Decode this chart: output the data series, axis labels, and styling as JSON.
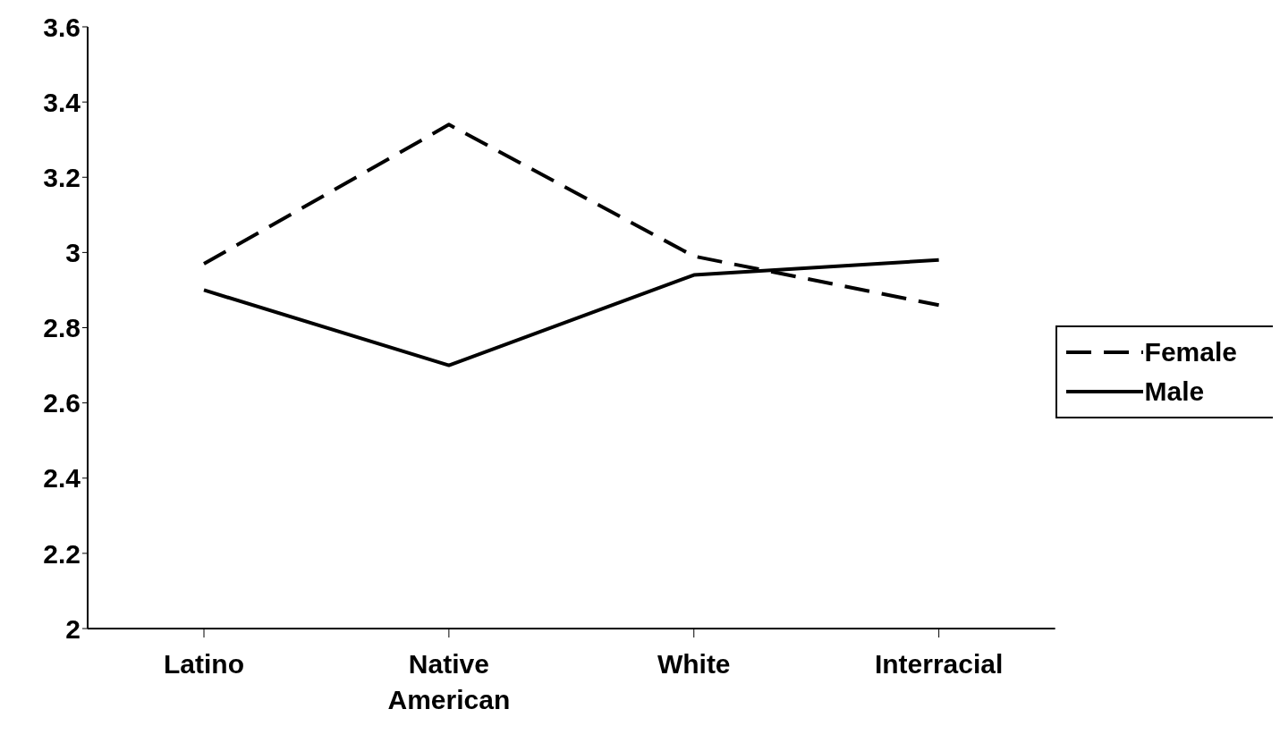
{
  "chart_data": {
    "type": "line",
    "categories": [
      "Latino",
      "Native American",
      "White",
      "Interracial"
    ],
    "series": [
      {
        "name": "Female",
        "color": "#000000",
        "line_style": "dashed",
        "values": [
          2.97,
          3.34,
          2.99,
          2.86
        ]
      },
      {
        "name": "Male",
        "color": "#000000",
        "line_style": "solid",
        "values": [
          2.9,
          2.7,
          2.94,
          2.98
        ]
      }
    ],
    "ylim": [
      2,
      3.6
    ],
    "yticks": [
      2,
      2.2,
      2.4,
      2.6,
      2.8,
      3,
      3.2,
      3.4,
      3.6
    ],
    "grid": false,
    "legend": "right",
    "marker": "none"
  }
}
